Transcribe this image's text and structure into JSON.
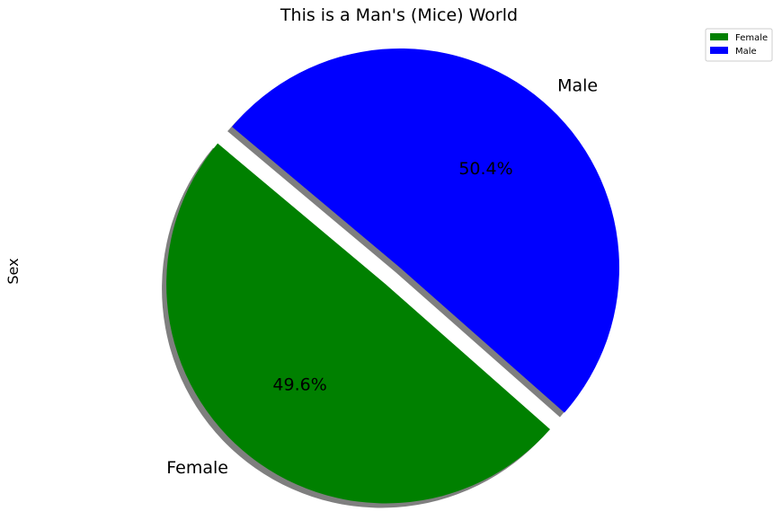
{
  "chart_data": {
    "type": "pie",
    "title": "This is a Man's (Mice) World",
    "ylabel": "Sex",
    "categories": [
      "Female",
      "Male"
    ],
    "values": [
      49.6,
      50.4
    ],
    "percent_labels": [
      "49.6%",
      "50.4%"
    ],
    "colors": [
      "#008000",
      "#0000ff"
    ],
    "explode": [
      0.1,
      0
    ],
    "start_angle_deg": 140,
    "shadow": true,
    "legend": {
      "placement": "top-right",
      "entries": [
        "Female",
        "Male"
      ]
    }
  }
}
